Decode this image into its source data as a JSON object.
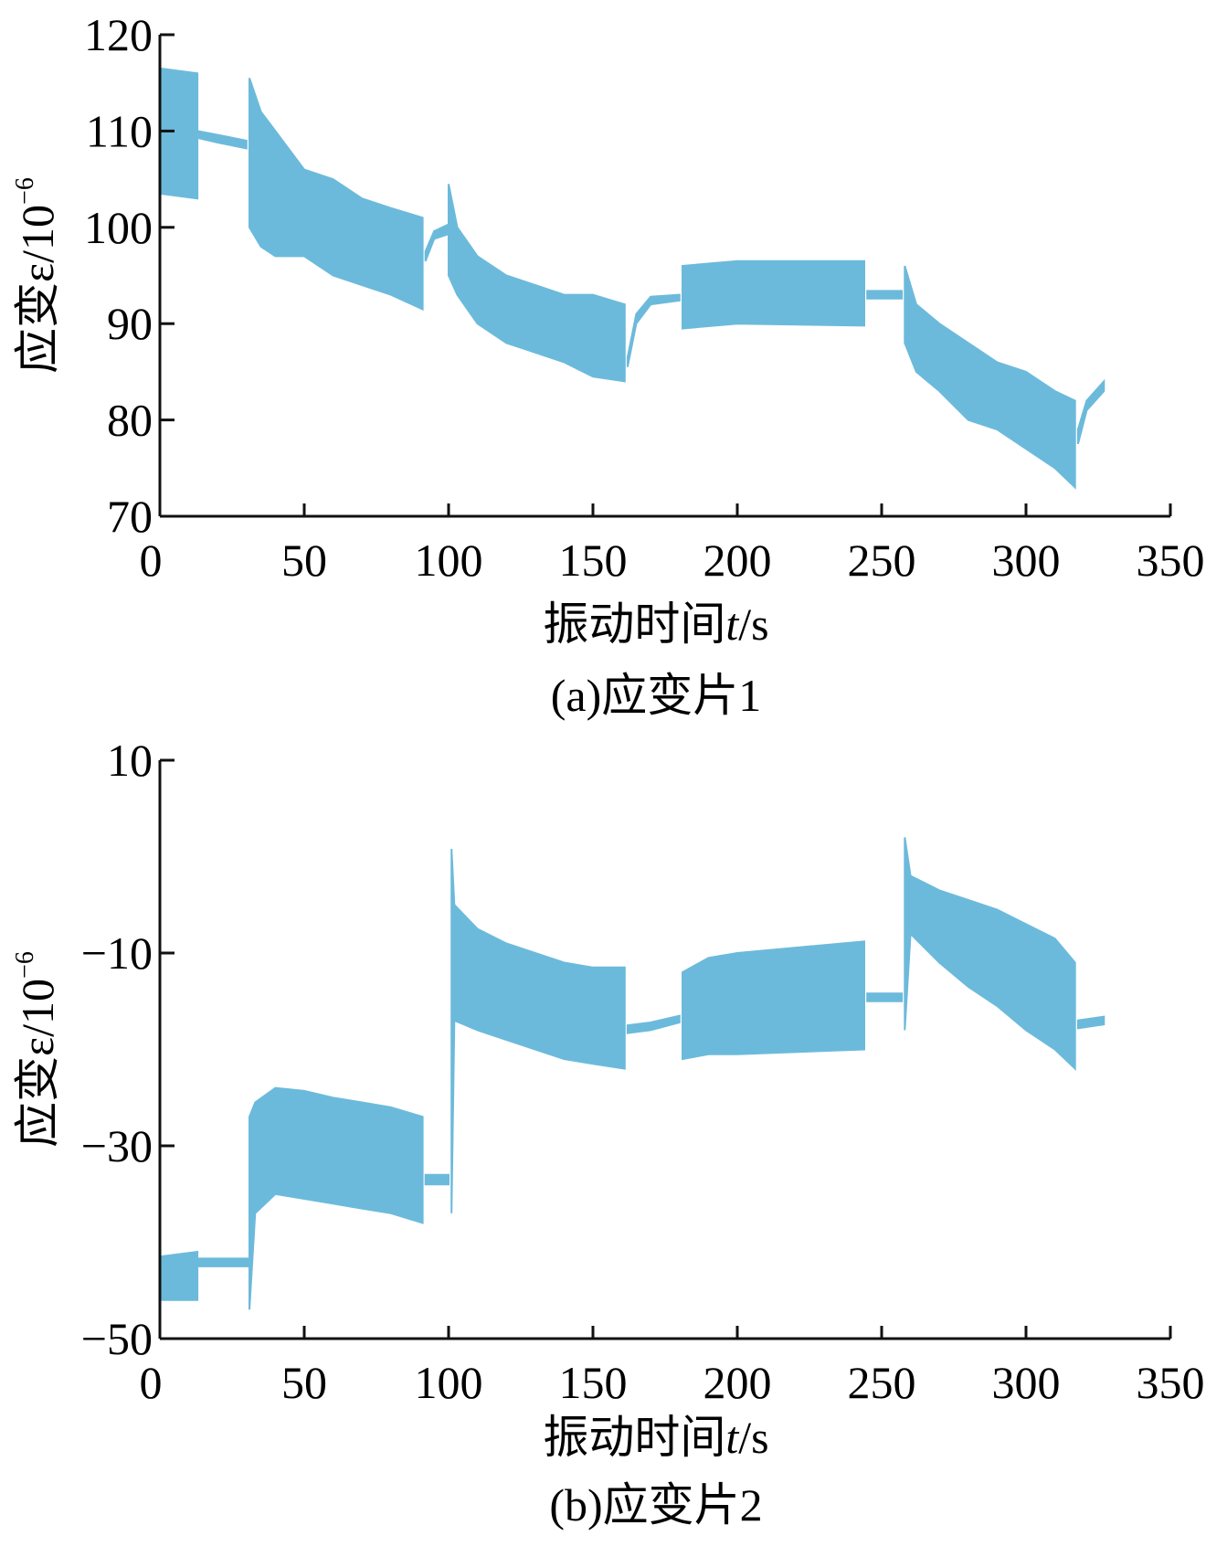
{
  "color": "#6cbadb",
  "chart_data": [
    {
      "type": "area",
      "title": "(a)应变片1",
      "xlabel": "振动时间t/s",
      "xlabel_main": "振动时间",
      "xlabel_var": "t",
      "xlabel_unit": "/s",
      "ylabel": "应变ε/10⁻⁶",
      "ylabel_main": "应变ε/10",
      "ylabel_exp": "−6",
      "xlim": [
        0,
        350
      ],
      "ylim": [
        70,
        120
      ],
      "xticks": [
        "0",
        "50",
        "100",
        "150",
        "200",
        "250",
        "300",
        "350"
      ],
      "yticks": [
        "70",
        "80",
        "90",
        "100",
        "110",
        "120"
      ],
      "segments": [
        [
          [
            0,
            103.5,
            116.5
          ],
          [
            13,
            103,
            116
          ]
        ],
        [
          [
            13,
            109.3,
            110
          ],
          [
            20,
            108.8,
            109.6
          ],
          [
            30,
            108.2,
            109
          ]
        ],
        [
          [
            31,
            100,
            115.5
          ],
          [
            35,
            98,
            112
          ],
          [
            40,
            97,
            110
          ],
          [
            50,
            97,
            106
          ],
          [
            60,
            95,
            105
          ],
          [
            70,
            94,
            103
          ],
          [
            80,
            93,
            102
          ],
          [
            91,
            91.5,
            101
          ]
        ],
        [
          [
            92,
            96.5,
            97.5
          ],
          [
            95,
            98.8,
            99.6
          ],
          [
            100,
            99.3,
            100.3
          ]
        ],
        [
          [
            100,
            95,
            104.5
          ],
          [
            103,
            93,
            100
          ],
          [
            110,
            90,
            97
          ],
          [
            120,
            88,
            95
          ],
          [
            130,
            87,
            94
          ],
          [
            140,
            86,
            93
          ],
          [
            150,
            84.5,
            93
          ],
          [
            161,
            84,
            92
          ]
        ],
        [
          [
            162,
            85.5,
            86.5
          ],
          [
            165,
            90,
            91
          ],
          [
            170,
            92,
            92.8
          ],
          [
            180,
            92.4,
            93
          ]
        ],
        [
          [
            181,
            89.5,
            96
          ],
          [
            200,
            90,
            96.5
          ],
          [
            244,
            89.8,
            96.5
          ]
        ],
        [
          [
            245,
            92.6,
            93.4
          ],
          [
            257,
            92.6,
            93.4
          ]
        ],
        [
          [
            258,
            88,
            96
          ],
          [
            262,
            85,
            92
          ],
          [
            270,
            83,
            90
          ],
          [
            280,
            80,
            88
          ],
          [
            290,
            79,
            86
          ],
          [
            300,
            77,
            85
          ],
          [
            310,
            75,
            83
          ],
          [
            317,
            73,
            82
          ]
        ],
        [
          [
            318,
            77.5,
            79
          ],
          [
            321,
            81,
            82
          ],
          [
            327,
            83,
            84
          ]
        ]
      ]
    },
    {
      "type": "area",
      "title": "(b)应变片2",
      "xlabel": "振动时间t/s",
      "xlabel_main": "振动时间",
      "xlabel_var": "t",
      "xlabel_unit": "/s",
      "ylabel": "应变ε/10⁻⁶",
      "ylabel_main": "应变ε/10",
      "ylabel_exp": "−6",
      "xlim": [
        0,
        350
      ],
      "ylim": [
        -50,
        10
      ],
      "xticks": [
        "0",
        "50",
        "100",
        "150",
        "200",
        "250",
        "300",
        "350"
      ],
      "yticks": [
        "−50",
        "−30",
        "−10",
        "10"
      ],
      "ytick_values": [
        -50,
        -30,
        -10,
        10
      ],
      "segments": [
        [
          [
            0,
            -46,
            -41.5
          ],
          [
            13,
            -46,
            -41
          ]
        ],
        [
          [
            13,
            -42.5,
            -41.7
          ],
          [
            31,
            -42.5,
            -41.7
          ]
        ],
        [
          [
            31,
            -47,
            -27
          ],
          [
            33,
            -37,
            -25.5
          ],
          [
            40,
            -35,
            -24
          ],
          [
            50,
            -35.5,
            -24.3
          ],
          [
            60,
            -36,
            -25
          ],
          [
            70,
            -36.5,
            -25.5
          ],
          [
            80,
            -37,
            -26
          ],
          [
            91,
            -38,
            -27
          ]
        ],
        [
          [
            92,
            -34,
            -33
          ],
          [
            100,
            -34,
            -33
          ]
        ],
        [
          [
            101,
            -37,
            0.8
          ],
          [
            102,
            -17,
            -5
          ],
          [
            110,
            -18,
            -7.5
          ],
          [
            120,
            -19,
            -9
          ],
          [
            130,
            -20,
            -10
          ],
          [
            140,
            -21,
            -11
          ],
          [
            150,
            -21.5,
            -11.5
          ],
          [
            161,
            -22,
            -11.5
          ]
        ],
        [
          [
            162,
            -18.3,
            -17.5
          ],
          [
            170,
            -18,
            -17.2
          ],
          [
            180,
            -17.2,
            -16.5
          ]
        ],
        [
          [
            181,
            -21,
            -12
          ],
          [
            190,
            -20.5,
            -10.5
          ],
          [
            200,
            -20.5,
            -10
          ],
          [
            244,
            -20,
            -8.8
          ]
        ],
        [
          [
            245,
            -15,
            -14.2
          ],
          [
            257,
            -15,
            -14.2
          ]
        ],
        [
          [
            258,
            -18,
            2
          ],
          [
            260,
            -8,
            -2
          ],
          [
            270,
            -11,
            -3.5
          ],
          [
            280,
            -13.5,
            -4.5
          ],
          [
            290,
            -15.5,
            -5.5
          ],
          [
            300,
            -18,
            -7
          ],
          [
            310,
            -20,
            -8.5
          ],
          [
            317,
            -22,
            -11
          ]
        ],
        [
          [
            318,
            -17.8,
            -17
          ],
          [
            327,
            -17.4,
            -16.6
          ]
        ]
      ]
    }
  ]
}
